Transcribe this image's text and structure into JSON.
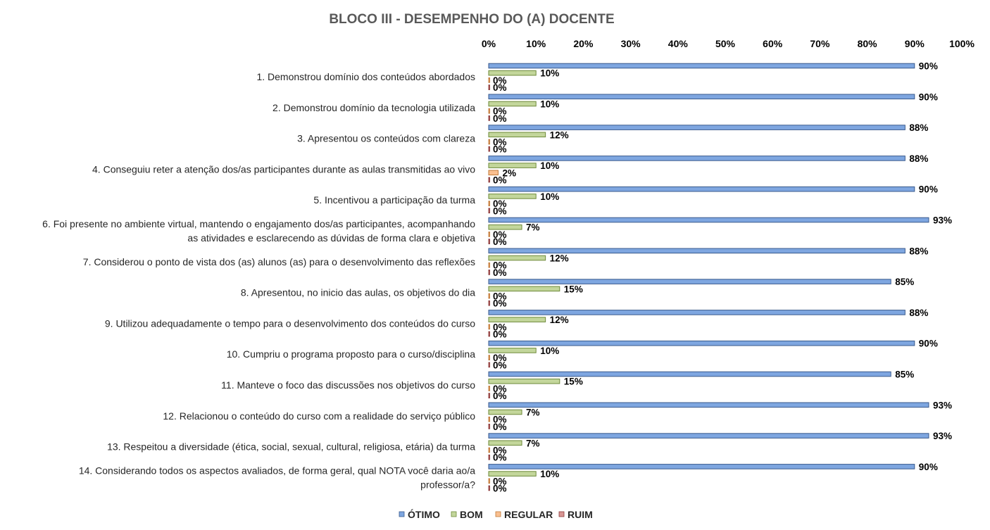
{
  "chart_data": {
    "type": "bar",
    "orientation": "horizontal",
    "title": "BLOCO III - DESEMPENHO DO (A) DOCENTE",
    "xlim": [
      0,
      100
    ],
    "ticks": [
      "0%",
      "10%",
      "20%",
      "30%",
      "40%",
      "50%",
      "60%",
      "70%",
      "80%",
      "90%",
      "100%"
    ],
    "tick_values": [
      0,
      10,
      20,
      30,
      40,
      50,
      60,
      70,
      80,
      90,
      100
    ],
    "axis_position": "top",
    "grid": false,
    "legend_position": "bottom",
    "categories": [
      [
        "1. Demonstrou domínio dos conteúdos abordados"
      ],
      [
        "2. Demonstrou domínio da tecnologia utilizada"
      ],
      [
        "3. Apresentou os conteúdos com clareza"
      ],
      [
        "4. Conseguiu reter a atenção dos/as participantes durante as aulas transmitidas ao vivo"
      ],
      [
        "5. Incentivou a participação da turma"
      ],
      [
        "6. Foi presente no ambiente virtual, mantendo o engajamento dos/as participantes, acompanhando",
        "as atividades e esclarecendo as dúvidas de forma clara e objetiva"
      ],
      [
        "7. Considerou o ponto de vista dos (as) alunos (as) para o desenvolvimento das reflexões"
      ],
      [
        "8. Apresentou, no inicio das aulas, os objetivos do dia"
      ],
      [
        "9. Utilizou adequadamente o tempo para o desenvolvimento dos conteúdos do curso"
      ],
      [
        "10. Cumpriu o programa proposto para o curso/disciplina"
      ],
      [
        "11. Manteve o foco das discussões nos objetivos do curso"
      ],
      [
        "12. Relacionou o conteúdo do curso com a realidade do serviço público"
      ],
      [
        "13. Respeitou a diversidade (ética, social, sexual, cultural, religiosa, etária) da turma"
      ],
      [
        "14. Considerando todos os aspectos avaliados, de forma geral, qual NOTA você daria ao/a",
        "professor/a?"
      ]
    ],
    "series": [
      {
        "name": "ÓTIMO",
        "color": "#7EA6E0",
        "edge": "#3A5A8C",
        "values": [
          90,
          90,
          88,
          88,
          90,
          93,
          88,
          85,
          88,
          90,
          85,
          93,
          93,
          90
        ],
        "labels": [
          "90%",
          "90%",
          "88%",
          "88%",
          "90%",
          "93%",
          "88%",
          "85%",
          "88%",
          "90%",
          "85%",
          "93%",
          "93%",
          "90%"
        ]
      },
      {
        "name": "BOM",
        "color": "#C3D69B",
        "edge": "#6E8A3A",
        "values": [
          10,
          10,
          12,
          10,
          10,
          7,
          12,
          15,
          12,
          10,
          15,
          7,
          7,
          10
        ],
        "labels": [
          "10%",
          "10%",
          "12%",
          "10%",
          "10%",
          "7%",
          "12%",
          "15%",
          "12%",
          "10%",
          "15%",
          "7%",
          "7%",
          "10%"
        ]
      },
      {
        "name": "REGULAR",
        "color": "#FAC090",
        "edge": "#C07A3A",
        "values": [
          0,
          0,
          0,
          2,
          0,
          0,
          0,
          0,
          0,
          0,
          0,
          0,
          0,
          0
        ],
        "labels": [
          "0%",
          "0%",
          "0%",
          "2%",
          "0%",
          "0%",
          "0%",
          "0%",
          "0%",
          "0%",
          "0%",
          "0%",
          "0%",
          "0%"
        ]
      },
      {
        "name": "RUIM",
        "color": "#D99694",
        "edge": "#8C3A3A",
        "values": [
          0,
          0,
          0,
          0,
          0,
          0,
          0,
          0,
          0,
          0,
          0,
          0,
          0,
          0
        ],
        "labels": [
          "0%",
          "0%",
          "0%",
          "0%",
          "0%",
          "0%",
          "0%",
          "0%",
          "0%",
          "0%",
          "0%",
          "0%",
          "0%",
          "0%"
        ]
      }
    ]
  }
}
